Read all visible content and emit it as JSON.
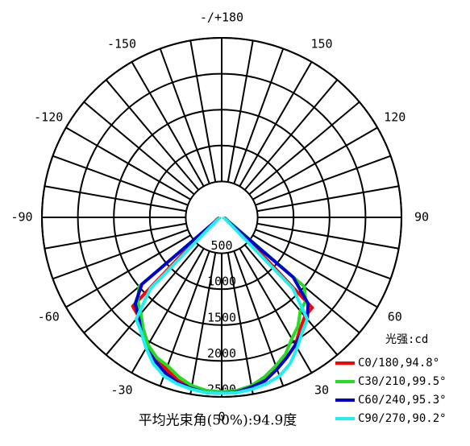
{
  "chart_data": {
    "type": "polar",
    "x": [
      -90,
      -85,
      -80,
      -75,
      -70,
      -65,
      -60,
      -55,
      -50,
      -45,
      -40,
      -35,
      -30,
      -25,
      -20,
      -15,
      -10,
      -5,
      0,
      5,
      10,
      15,
      20,
      25,
      30,
      35,
      40,
      45,
      50,
      55,
      60,
      65,
      70,
      75,
      80,
      85,
      90
    ],
    "series": [
      {
        "name": "C0/180,94.8°",
        "color": "#ff0000",
        "values": [
          40,
          40,
          40,
          50,
          60,
          80,
          100,
          150,
          400,
          1750,
          1800,
          1900,
          2050,
          2150,
          2250,
          2350,
          2420,
          2450,
          2450,
          2450,
          2420,
          2350,
          2250,
          2150,
          2050,
          1900,
          1800,
          1780,
          450,
          150,
          100,
          80,
          60,
          50,
          40,
          40,
          40
        ]
      },
      {
        "name": "C30/210,99.5°",
        "color": "#22dd22",
        "values": [
          30,
          30,
          30,
          40,
          50,
          60,
          80,
          120,
          1500,
          1650,
          1750,
          1900,
          2050,
          2150,
          2200,
          2300,
          2380,
          2420,
          2430,
          2420,
          2380,
          2300,
          2200,
          2100,
          1950,
          1850,
          1700,
          1650,
          1500,
          200,
          100,
          70,
          50,
          40,
          30,
          30,
          30
        ]
      },
      {
        "name": "C60/240,95.3°",
        "color": "#0000cc",
        "values": [
          30,
          30,
          30,
          40,
          50,
          60,
          80,
          150,
          1450,
          1700,
          1800,
          1950,
          2100,
          2200,
          2300,
          2380,
          2420,
          2450,
          2450,
          2440,
          2400,
          2350,
          2250,
          2150,
          2050,
          1950,
          1850,
          1700,
          1300,
          150,
          80,
          60,
          50,
          40,
          30,
          30,
          30
        ]
      },
      {
        "name": "C90/270,90.2°",
        "color": "#22eeee",
        "values": [
          30,
          30,
          30,
          30,
          40,
          50,
          70,
          100,
          200,
          1400,
          1850,
          1950,
          2100,
          2250,
          2350,
          2400,
          2430,
          2450,
          2450,
          2450,
          2430,
          2400,
          2350,
          2250,
          2100,
          1950,
          1850,
          1400,
          200,
          100,
          70,
          50,
          40,
          30,
          30,
          30,
          30
        ]
      }
    ],
    "rlim": [
      0,
      2500
    ],
    "rticks": [
      500,
      1000,
      1500,
      2000,
      2500
    ],
    "xticks": [
      -150,
      -120,
      -90,
      -60,
      -30,
      0,
      30,
      60,
      90,
      120,
      150,
      {
        "value": 180,
        "label": "-/+180"
      }
    ],
    "legend_title": "光强:cd",
    "footer": "平均光束角(50%):94.9度"
  }
}
